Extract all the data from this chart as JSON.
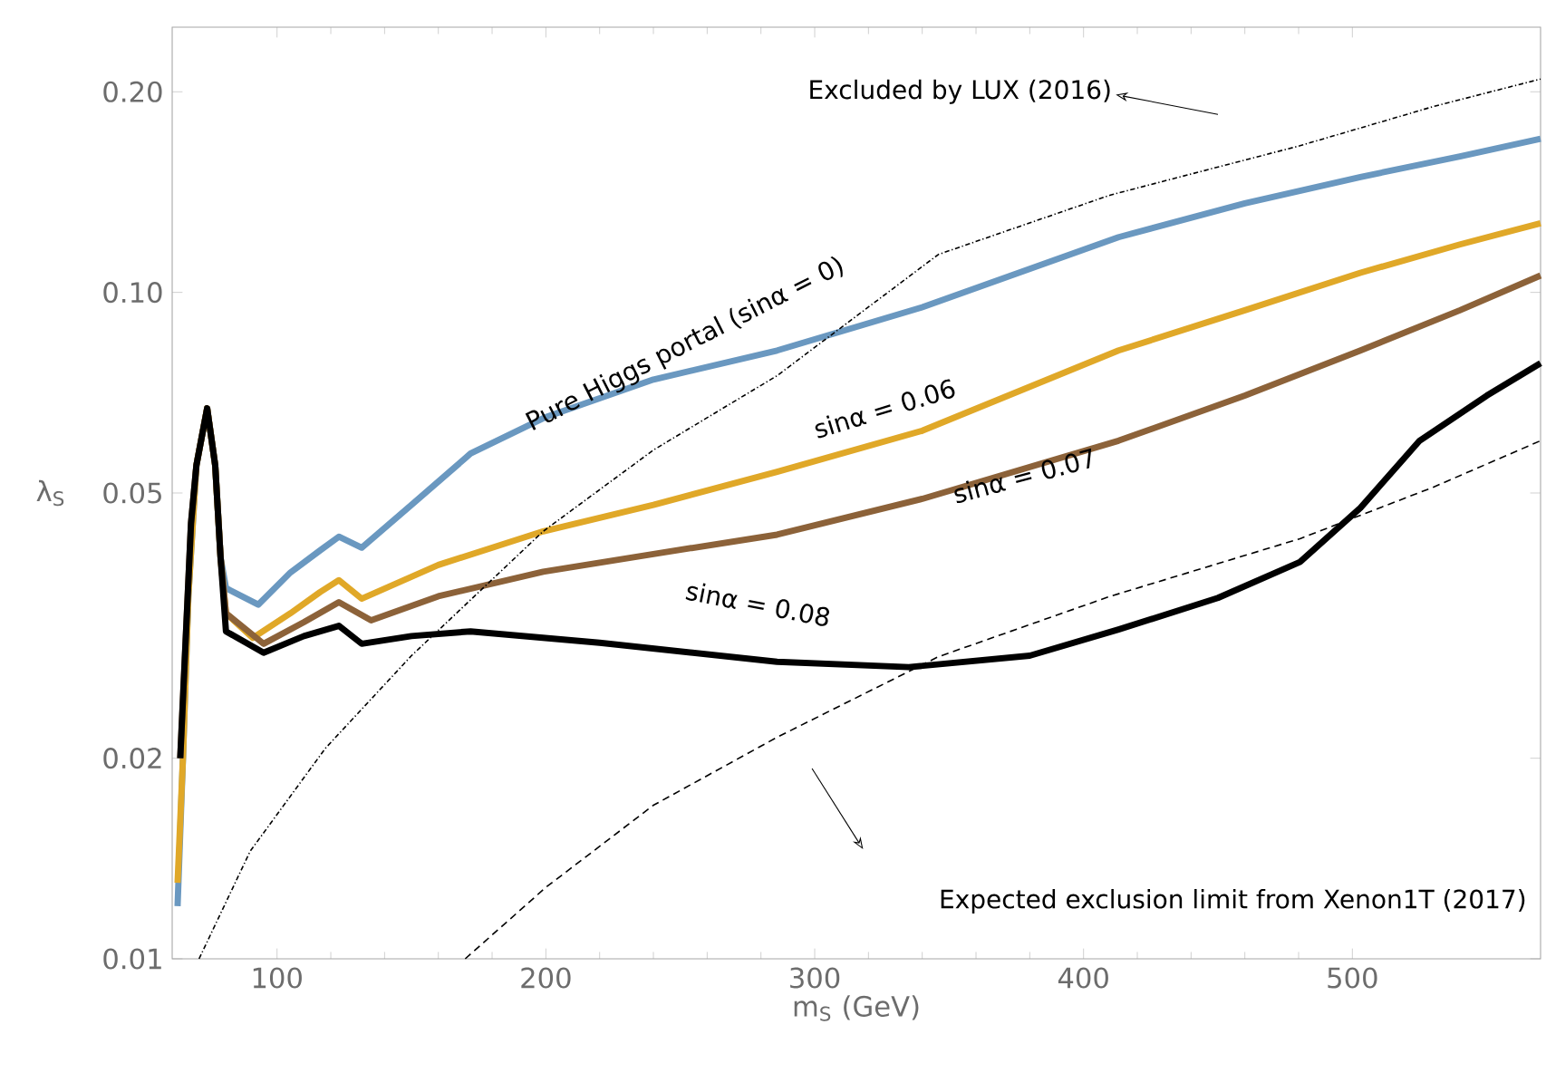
{
  "chart_data": {
    "type": "line",
    "xlabel": "m$_{S}$ (GeV)",
    "ylabel": "λ$_{S}$",
    "log": "y",
    "xlim": [
      61,
      570
    ],
    "ylim": [
      0.01,
      0.25
    ],
    "xticks": [
      100,
      200,
      300,
      400,
      500
    ],
    "yticks": [
      {
        "value": 0.01,
        "label": "0.01"
      },
      {
        "value": 0.02,
        "label": "0.02"
      },
      {
        "value": 0.05,
        "label": "0.05"
      },
      {
        "value": 0.1,
        "label": "0.10"
      },
      {
        "value": 0.2,
        "label": "0.20"
      }
    ],
    "legend": false,
    "grid": false,
    "annotations": [
      "Excluded by LUX (2016)",
      "Expected exclusion limit from Xenon1T (2017)"
    ],
    "series": [
      {
        "name": "Pure Higgs portal (sinα = 0)",
        "color": "#6a98c0",
        "line_style": "solid",
        "x": [
          63,
          65,
          67,
          70,
          74,
          77,
          79,
          81,
          93,
          105,
          116,
          123,
          131.5,
          150,
          172,
          200,
          240,
          286,
          340,
          413,
          460,
          503,
          540,
          570
        ],
        "values": [
          0.012,
          0.02,
          0.035,
          0.055,
          0.067,
          0.055,
          0.04,
          0.036,
          0.034,
          0.038,
          0.041,
          0.043,
          0.0414,
          0.048,
          0.0573,
          0.065,
          0.074,
          0.0818,
          0.095,
          0.121,
          0.136,
          0.149,
          0.16,
          0.17
        ]
      },
      {
        "name": "sinα = 0.06",
        "color": "#e0a828",
        "line_style": "solid",
        "x": [
          63,
          65,
          67,
          70,
          74,
          77,
          79,
          81,
          91,
          105,
          116,
          123,
          131.5,
          160,
          199,
          240,
          286,
          340,
          413,
          460,
          503,
          540,
          570
        ],
        "values": [
          0.013,
          0.02,
          0.035,
          0.055,
          0.067,
          0.055,
          0.04,
          0.033,
          0.0303,
          0.033,
          0.0355,
          0.037,
          0.0347,
          0.039,
          0.0438,
          0.048,
          0.0538,
          0.062,
          0.0818,
          0.094,
          0.107,
          0.118,
          0.127
        ]
      },
      {
        "name": "sinα = 0.07",
        "color": "#8c6239",
        "line_style": "solid",
        "x": [
          64,
          66,
          68,
          70,
          74,
          77,
          79,
          81,
          95,
          110,
          123,
          135,
          160,
          199,
          240,
          286,
          340,
          413,
          460,
          503,
          540,
          570
        ],
        "values": [
          0.02,
          0.03,
          0.045,
          0.055,
          0.067,
          0.055,
          0.04,
          0.033,
          0.0297,
          0.032,
          0.0343,
          0.0322,
          0.035,
          0.0381,
          0.0405,
          0.0433,
          0.049,
          0.0599,
          0.07,
          0.0818,
          0.094,
          0.106
        ]
      },
      {
        "name": "sinα = 0.08",
        "color": "#000000",
        "line_style": "solid",
        "x": [
          64,
          66,
          68,
          70,
          74,
          77,
          79,
          81,
          95,
          110,
          123,
          131.5,
          150,
          172,
          220,
          286,
          335,
          380,
          413,
          450,
          480.5,
          503,
          525,
          550,
          570
        ],
        "values": [
          0.02,
          0.03,
          0.045,
          0.055,
          0.067,
          0.055,
          0.04,
          0.031,
          0.0288,
          0.0305,
          0.0316,
          0.0297,
          0.0305,
          0.031,
          0.0298,
          0.0279,
          0.0274,
          0.0285,
          0.0312,
          0.0348,
          0.0394,
          0.0475,
          0.0599,
          0.07,
          0.0783
        ]
      },
      {
        "color": "#000000",
        "line_style": "dotted",
        "x": [
          71,
          90,
          118,
          150,
          199,
          240,
          286,
          346,
          410,
          480.5,
          530,
          570
        ],
        "values": [
          0.01,
          0.0145,
          0.0207,
          0.0285,
          0.0438,
          0.058,
          0.075,
          0.114,
          0.14,
          0.166,
          0.19,
          0.209
        ]
      },
      {
        "color": "#000000",
        "line_style": "dashed",
        "x": [
          170,
          200,
          240,
          286,
          346,
          410,
          480.5,
          530,
          570
        ],
        "values": [
          0.01,
          0.0128,
          0.017,
          0.0215,
          0.0284,
          0.035,
          0.0427,
          0.051,
          0.0599
        ]
      }
    ]
  }
}
